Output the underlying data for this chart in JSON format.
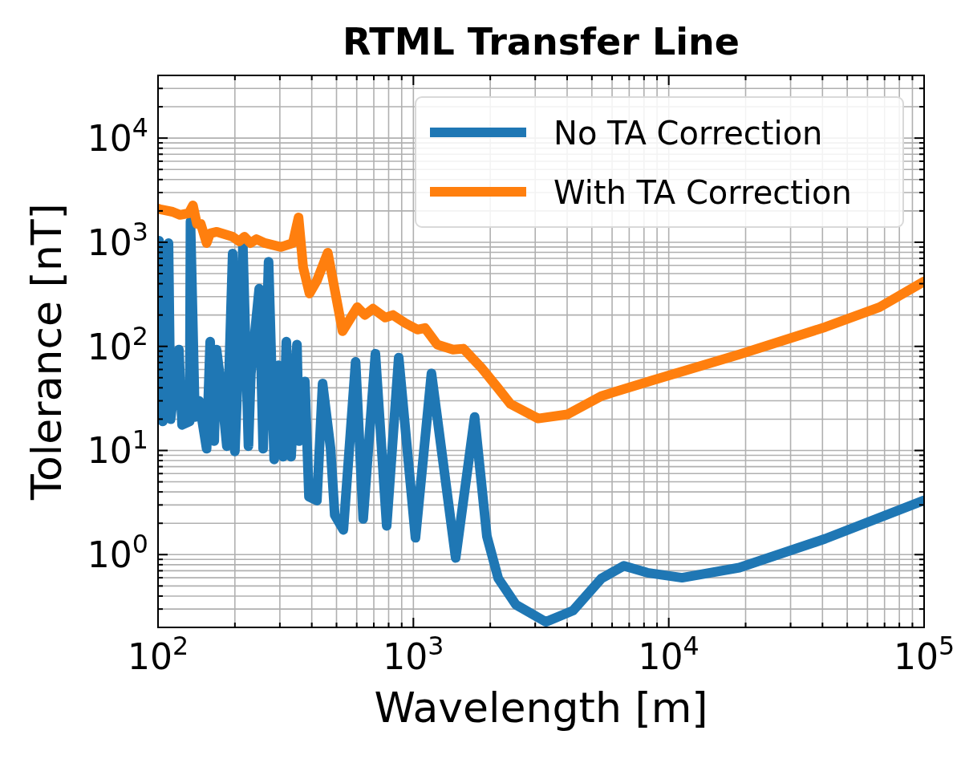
{
  "chart_data": {
    "type": "line",
    "title": "RTML Transfer Line",
    "xlabel": "Wavelength [m]",
    "ylabel": "Tolerance [nT]",
    "log": "xy",
    "grid": true,
    "legend": "top right",
    "line_style": "solid",
    "xlim": [
      100,
      100000
    ],
    "ylim": [
      0.2,
      40000
    ],
    "xticks": [
      {
        "value": 100,
        "label": "10$^{2}$"
      },
      {
        "value": 200,
        "label": null
      },
      {
        "value": 300,
        "label": null
      },
      {
        "value": 400,
        "label": null
      },
      {
        "value": 500,
        "label": null
      },
      {
        "value": 600,
        "label": null
      },
      {
        "value": 700,
        "label": null
      },
      {
        "value": 800,
        "label": null
      },
      {
        "value": 900,
        "label": null
      },
      {
        "value": 1000,
        "label": "10$^{3}$"
      },
      {
        "value": 2000,
        "label": null
      },
      {
        "value": 3000,
        "label": null
      },
      {
        "value": 4000,
        "label": null
      },
      {
        "value": 5000,
        "label": null
      },
      {
        "value": 6000,
        "label": null
      },
      {
        "value": 7000,
        "label": null
      },
      {
        "value": 8000,
        "label": null
      },
      {
        "value": 9000,
        "label": null
      },
      {
        "value": 10000,
        "label": "10$^{4}$"
      },
      {
        "value": 20000,
        "label": null
      },
      {
        "value": 30000,
        "label": null
      },
      {
        "value": 40000,
        "label": null
      },
      {
        "value": 50000,
        "label": null
      },
      {
        "value": 60000,
        "label": null
      },
      {
        "value": 70000,
        "label": null
      },
      {
        "value": 80000,
        "label": null
      },
      {
        "value": 90000,
        "label": null
      },
      {
        "value": 100000,
        "label": "10$^{5}$"
      }
    ],
    "yticks": [
      {
        "value": 0.3,
        "label": null
      },
      {
        "value": 0.4,
        "label": null
      },
      {
        "value": 0.5,
        "label": null
      },
      {
        "value": 0.6,
        "label": null
      },
      {
        "value": 0.7,
        "label": null
      },
      {
        "value": 0.8,
        "label": null
      },
      {
        "value": 0.9,
        "label": null
      },
      {
        "value": 1,
        "label": "10$^{0}$"
      },
      {
        "value": 2,
        "label": null
      },
      {
        "value": 3,
        "label": null
      },
      {
        "value": 4,
        "label": null
      },
      {
        "value": 5,
        "label": null
      },
      {
        "value": 6,
        "label": null
      },
      {
        "value": 7,
        "label": null
      },
      {
        "value": 8,
        "label": null
      },
      {
        "value": 9,
        "label": null
      },
      {
        "value": 10,
        "label": "10$^{1}$"
      },
      {
        "value": 20,
        "label": null
      },
      {
        "value": 30,
        "label": null
      },
      {
        "value": 40,
        "label": null
      },
      {
        "value": 50,
        "label": null
      },
      {
        "value": 60,
        "label": null
      },
      {
        "value": 70,
        "label": null
      },
      {
        "value": 80,
        "label": null
      },
      {
        "value": 90,
        "label": null
      },
      {
        "value": 100,
        "label": "10$^{2}$"
      },
      {
        "value": 200,
        "label": null
      },
      {
        "value": 300,
        "label": null
      },
      {
        "value": 400,
        "label": null
      },
      {
        "value": 500,
        "label": null
      },
      {
        "value": 600,
        "label": null
      },
      {
        "value": 700,
        "label": null
      },
      {
        "value": 800,
        "label": null
      },
      {
        "value": 900,
        "label": null
      },
      {
        "value": 1000,
        "label": "10$^{3}$"
      },
      {
        "value": 2000,
        "label": null
      },
      {
        "value": 3000,
        "label": null
      },
      {
        "value": 4000,
        "label": null
      },
      {
        "value": 5000,
        "label": null
      },
      {
        "value": 6000,
        "label": null
      },
      {
        "value": 7000,
        "label": null
      },
      {
        "value": 8000,
        "label": null
      },
      {
        "value": 9000,
        "label": null
      },
      {
        "value": 10000,
        "label": "10$^{4}$"
      },
      {
        "value": 20000,
        "label": null
      },
      {
        "value": 30000,
        "label": null
      }
    ],
    "series": [
      {
        "name": "No TA Correction",
        "color": "#1f77b4",
        "x": [
          101,
          104.4,
          109.9,
          112,
          120.7,
          124.2,
          133,
          134,
          139.5,
          144.7,
          155,
          160,
          166,
          169.5,
          175.7,
          186,
          196,
          200,
          215,
          226,
          231,
          249,
          258,
          271,
          285,
          296,
          309,
          318,
          332,
          350,
          357,
          376,
          390,
          419,
          441,
          474,
          492,
          532,
          594,
          636,
          710,
          786,
          876,
          1019,
          1177,
          1464,
          1737,
          1940,
          2150,
          2521,
          3300,
          4220,
          5450,
          6670,
          8240,
          11270,
          18900,
          41000,
          100000
        ],
        "values": [
          1035,
          19,
          980,
          20,
          93,
          17.6,
          19,
          1590,
          21,
          30,
          10.4,
          111,
          12.3,
          93,
          46,
          11,
          780,
          9.8,
          900,
          11,
          55,
          358,
          10.4,
          650,
          8.2,
          66,
          8.7,
          111,
          8.7,
          104,
          12.3,
          46,
          3.6,
          3.3,
          44,
          10.4,
          2.4,
          1.73,
          71,
          2.2,
          85,
          1.89,
          78,
          1.45,
          55,
          0.93,
          21,
          1.5,
          0.59,
          0.33,
          0.226,
          0.29,
          0.59,
          0.78,
          0.67,
          0.6,
          0.75,
          1.42,
          3.33
        ]
      },
      {
        "name": "With TA Correction",
        "color": "#ff7f0e",
        "x": [
          100,
          102,
          114,
          122,
          132,
          137,
          142,
          147,
          155,
          160,
          170,
          196,
          208,
          218,
          230,
          243,
          262,
          303,
          337,
          355,
          370,
          392,
          419,
          462,
          528,
          603,
          646,
          695,
          776,
          832,
          930,
          1037,
          1110,
          1240,
          1430,
          1570,
          1840,
          2130,
          2400,
          3080,
          4010,
          5440,
          8700,
          18900,
          41000,
          66900,
          100000
        ],
        "values": [
          2105,
          2070,
          1960,
          1830,
          1900,
          2260,
          1500,
          1500,
          982,
          1215,
          1260,
          1130,
          1020,
          1130,
          982,
          1070,
          982,
          900,
          982,
          1730,
          578,
          322,
          428,
          794,
          140,
          238,
          200,
          230,
          189,
          200,
          167,
          145,
          150,
          104,
          93,
          95,
          63,
          40.5,
          28,
          20.3,
          22.2,
          33.3,
          47.5,
          83.8,
          153,
          238,
          420
        ]
      }
    ]
  }
}
